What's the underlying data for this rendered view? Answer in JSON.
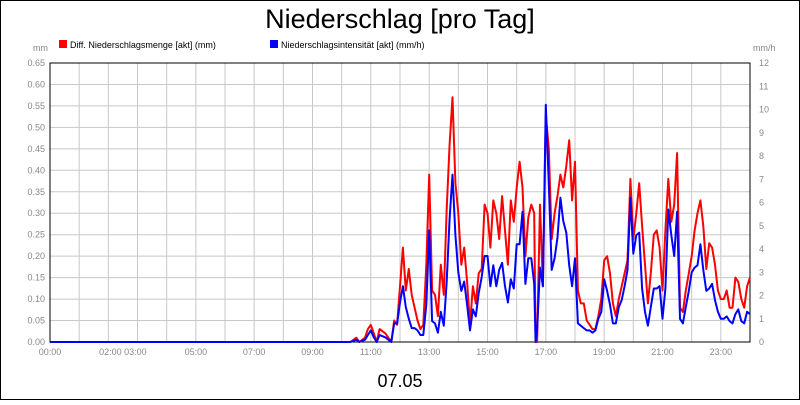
{
  "chart_data": {
    "type": "line",
    "title": "Niederschlag [pro Tag]",
    "date_label": "07.05",
    "left_axis": {
      "unit": "mm",
      "ylim": [
        0,
        0.65
      ],
      "ticks": [
        "0.00",
        "0.05",
        "0.10",
        "0.15",
        "0.20",
        "0.25",
        "0.30",
        "0.35",
        "0.40",
        "0.45",
        "0.50",
        "0.55",
        "0.60",
        "0.65"
      ]
    },
    "right_axis": {
      "unit": "mm/h",
      "ylim": [
        0,
        12
      ],
      "ticks": [
        "0",
        "1",
        "2",
        "3",
        "4",
        "5",
        "6",
        "7",
        "8",
        "9",
        "10",
        "11",
        "12"
      ]
    },
    "x_ticks": [
      {
        "hour": 0,
        "label": "00:00"
      },
      {
        "hour": 2.5,
        "label": "02:00 03:00"
      },
      {
        "hour": 5,
        "label": "05:00"
      },
      {
        "hour": 7,
        "label": "07:00"
      },
      {
        "hour": 9,
        "label": "09:00"
      },
      {
        "hour": 11,
        "label": "11:00"
      },
      {
        "hour": 13,
        "label": "13:00"
      },
      {
        "hour": 15,
        "label": "15:00"
      },
      {
        "hour": 17,
        "label": "17:00"
      },
      {
        "hour": 19,
        "label": "19:00"
      },
      {
        "hour": 21,
        "label": "21:00"
      },
      {
        "hour": 23,
        "label": "23:00"
      }
    ],
    "xlim": [
      0,
      24
    ],
    "grid": true,
    "legend_position": "top-left",
    "series": [
      {
        "name": "Diff. Niederschlagsmenge [akt] (mm)",
        "color": "#ff0000",
        "axis": "left",
        "x": [
          0,
          10.3,
          10.5,
          10.6,
          10.8,
          10.9,
          11.0,
          11.1,
          11.2,
          11.3,
          11.5,
          11.7,
          11.8,
          11.9,
          12.0,
          12.1,
          12.2,
          12.3,
          12.4,
          12.5,
          12.6,
          12.7,
          12.8,
          12.9,
          13.0,
          13.1,
          13.2,
          13.3,
          13.4,
          13.5,
          13.6,
          13.7,
          13.8,
          13.9,
          14.0,
          14.1,
          14.2,
          14.3,
          14.4,
          14.5,
          14.6,
          14.7,
          14.8,
          14.9,
          15.0,
          15.1,
          15.2,
          15.3,
          15.4,
          15.5,
          15.6,
          15.7,
          15.8,
          15.9,
          16.0,
          16.1,
          16.2,
          16.3,
          16.4,
          16.5,
          16.6,
          16.65,
          16.7,
          16.8,
          16.9,
          17.0,
          17.1,
          17.2,
          17.3,
          17.4,
          17.5,
          17.6,
          17.7,
          17.8,
          17.9,
          18.0,
          18.1,
          18.2,
          18.3,
          18.4,
          18.5,
          18.6,
          18.7,
          18.8,
          18.9,
          19.0,
          19.1,
          19.2,
          19.3,
          19.4,
          19.5,
          19.6,
          19.7,
          19.8,
          19.9,
          20.0,
          20.1,
          20.2,
          20.3,
          20.4,
          20.5,
          20.6,
          20.7,
          20.8,
          20.9,
          21.0,
          21.1,
          21.2,
          21.3,
          21.4,
          21.5,
          21.6,
          21.7,
          21.8,
          21.9,
          22.0,
          22.1,
          22.2,
          22.3,
          22.4,
          22.5,
          22.6,
          22.7,
          22.8,
          22.9,
          23.0,
          23.1,
          23.2,
          23.3,
          23.4,
          23.5,
          23.6,
          23.7,
          23.8,
          23.9,
          24.0
        ],
        "values": [
          0,
          0,
          0.01,
          0.0,
          0.01,
          0.03,
          0.04,
          0.02,
          0.0,
          0.03,
          0.02,
          0.0,
          0.05,
          0.04,
          0.13,
          0.22,
          0.12,
          0.17,
          0.11,
          0.08,
          0.05,
          0.03,
          0.04,
          0.18,
          0.39,
          0.12,
          0.11,
          0.06,
          0.18,
          0.11,
          0.31,
          0.46,
          0.57,
          0.37,
          0.3,
          0.18,
          0.22,
          0.14,
          0.04,
          0.13,
          0.09,
          0.16,
          0.17,
          0.32,
          0.3,
          0.22,
          0.33,
          0.3,
          0.24,
          0.34,
          0.26,
          0.18,
          0.33,
          0.28,
          0.36,
          0.42,
          0.36,
          0.2,
          0.29,
          0.32,
          0.3,
          0.0,
          0.0,
          0.32,
          0.13,
          0.53,
          0.45,
          0.24,
          0.3,
          0.34,
          0.39,
          0.36,
          0.41,
          0.47,
          0.33,
          0.42,
          0.12,
          0.09,
          0.09,
          0.05,
          0.04,
          0.03,
          0.03,
          0.06,
          0.1,
          0.19,
          0.2,
          0.16,
          0.09,
          0.06,
          0.1,
          0.13,
          0.16,
          0.19,
          0.38,
          0.24,
          0.3,
          0.37,
          0.27,
          0.18,
          0.09,
          0.16,
          0.25,
          0.26,
          0.22,
          0.12,
          0.26,
          0.38,
          0.28,
          0.32,
          0.44,
          0.08,
          0.07,
          0.12,
          0.16,
          0.2,
          0.26,
          0.3,
          0.33,
          0.27,
          0.17,
          0.23,
          0.22,
          0.18,
          0.12,
          0.1,
          0.1,
          0.12,
          0.08,
          0.08,
          0.15,
          0.14,
          0.1,
          0.08,
          0.13,
          0.15
        ]
      },
      {
        "name": "Niederschlagsintensität [akt] (mm/h)",
        "color": "#0000ff",
        "axis": "right",
        "x": [
          0,
          10.3,
          10.5,
          10.6,
          10.8,
          10.9,
          11.0,
          11.1,
          11.2,
          11.3,
          11.5,
          11.7,
          11.8,
          11.9,
          12.0,
          12.1,
          12.2,
          12.3,
          12.4,
          12.5,
          12.6,
          12.7,
          12.8,
          12.9,
          13.0,
          13.1,
          13.2,
          13.3,
          13.4,
          13.5,
          13.6,
          13.7,
          13.8,
          13.9,
          14.0,
          14.1,
          14.2,
          14.3,
          14.4,
          14.5,
          14.6,
          14.7,
          14.8,
          14.9,
          15.0,
          15.1,
          15.2,
          15.3,
          15.4,
          15.5,
          15.6,
          15.7,
          15.8,
          15.9,
          16.0,
          16.1,
          16.2,
          16.3,
          16.4,
          16.5,
          16.6,
          16.65,
          16.7,
          16.8,
          16.9,
          17.0,
          17.1,
          17.2,
          17.3,
          17.4,
          17.5,
          17.6,
          17.7,
          17.8,
          17.9,
          18.0,
          18.1,
          18.2,
          18.3,
          18.4,
          18.5,
          18.6,
          18.7,
          18.8,
          18.9,
          19.0,
          19.1,
          19.2,
          19.3,
          19.4,
          19.5,
          19.6,
          19.7,
          19.8,
          19.9,
          20.0,
          20.1,
          20.2,
          20.3,
          20.4,
          20.5,
          20.6,
          20.7,
          20.8,
          20.9,
          21.0,
          21.1,
          21.2,
          21.3,
          21.4,
          21.5,
          21.6,
          21.7,
          21.8,
          21.9,
          22.0,
          22.1,
          22.2,
          22.3,
          22.4,
          22.5,
          22.6,
          22.7,
          22.8,
          22.9,
          23.0,
          23.1,
          23.2,
          23.3,
          23.4,
          23.5,
          23.6,
          23.7,
          23.8,
          23.9,
          24.0
        ],
        "values": [
          0,
          0,
          0.1,
          0.0,
          0.1,
          0.3,
          0.5,
          0.2,
          0.0,
          0.3,
          0.2,
          0.0,
          0.8,
          0.8,
          1.7,
          2.4,
          1.5,
          1.0,
          0.6,
          0.6,
          0.5,
          0.3,
          0.3,
          1.6,
          4.8,
          0.9,
          0.8,
          0.4,
          1.3,
          0.7,
          2.6,
          5.3,
          7.2,
          4.6,
          3.0,
          2.2,
          2.6,
          1.6,
          0.5,
          1.4,
          1.1,
          2.1,
          2.8,
          3.7,
          3.7,
          2.4,
          3.3,
          2.4,
          3.1,
          3.4,
          2.4,
          1.7,
          2.7,
          2.3,
          4.2,
          4.2,
          5.6,
          2.5,
          3.6,
          3.6,
          2.5,
          0.0,
          0.5,
          3.2,
          2.4,
          10.2,
          6.8,
          3.1,
          3.6,
          4.5,
          6.2,
          5.2,
          4.7,
          3.3,
          2.4,
          3.6,
          0.8,
          0.7,
          0.6,
          0.5,
          0.5,
          0.4,
          0.5,
          1.0,
          1.3,
          2.7,
          2.2,
          1.6,
          0.8,
          0.8,
          1.5,
          1.8,
          2.4,
          3.1,
          6.2,
          3.8,
          4.6,
          4.7,
          2.3,
          1.3,
          0.7,
          1.5,
          2.3,
          2.3,
          2.4,
          1.0,
          2.3,
          5.7,
          4.6,
          3.7,
          5.6,
          1.0,
          0.8,
          1.5,
          2.2,
          3.0,
          3.2,
          3.3,
          4.2,
          3.1,
          2.2,
          2.3,
          2.5,
          1.8,
          1.3,
          1.0,
          1.0,
          1.1,
          0.9,
          0.8,
          1.2,
          1.4,
          0.9,
          0.8,
          1.3,
          1.2
        ]
      }
    ]
  }
}
